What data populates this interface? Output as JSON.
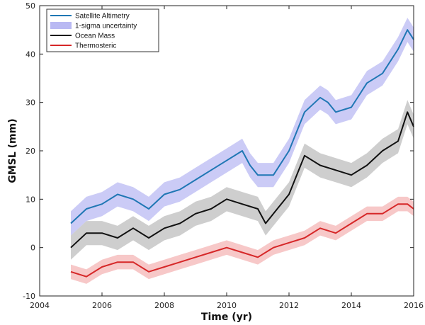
{
  "chart_data": {
    "type": "line",
    "title": "",
    "xlabel": "Time (yr)",
    "ylabel": "GMSL (mm)",
    "xlim": [
      2004,
      2016
    ],
    "ylim": [
      -10,
      50
    ],
    "xticks": [
      2004,
      2006,
      2008,
      2010,
      2012,
      2014,
      2016
    ],
    "yticks": [
      -10,
      0,
      10,
      20,
      30,
      40,
      50
    ],
    "legend_position": "top-left",
    "legend": [
      "Satellite Altimetry",
      "1-sigma uncertainty",
      "Ocean Mass",
      "Thermosteric"
    ],
    "series": [
      {
        "name": "Satellite Altimetry",
        "color": "#1f77b4",
        "band_color": "#b9b9f3",
        "uncertainty": 2.5,
        "x": [
          2005.0,
          2005.5,
          2006.0,
          2006.5,
          2007.0,
          2007.5,
          2008.0,
          2008.5,
          2009.0,
          2009.5,
          2010.0,
          2010.5,
          2010.75,
          2011.0,
          2011.5,
          2012.0,
          2012.5,
          2013.0,
          2013.25,
          2013.5,
          2014.0,
          2014.5,
          2015.0,
          2015.5,
          2015.8,
          2016.0
        ],
        "values": [
          5,
          8,
          9,
          11,
          10,
          8,
          11,
          12,
          14,
          16,
          18,
          20,
          17,
          15,
          15,
          20,
          28,
          31,
          30,
          28,
          29,
          34,
          36,
          41,
          45,
          43
        ]
      },
      {
        "name": "Ocean Mass",
        "color": "#111111",
        "band_color": "#bdbdbd",
        "uncertainty": 2.5,
        "x": [
          2005.0,
          2005.5,
          2006.0,
          2006.5,
          2007.0,
          2007.5,
          2008.0,
          2008.5,
          2009.0,
          2009.5,
          2010.0,
          2010.5,
          2011.0,
          2011.25,
          2011.5,
          2012.0,
          2012.5,
          2013.0,
          2013.5,
          2014.0,
          2014.5,
          2015.0,
          2015.5,
          2015.8,
          2016.0
        ],
        "values": [
          0,
          3,
          3,
          2,
          4,
          2,
          4,
          5,
          7,
          8,
          10,
          9,
          8,
          5,
          7,
          11,
          19,
          17,
          16,
          15,
          17,
          20,
          22,
          28,
          25
        ]
      },
      {
        "name": "Thermosteric",
        "color": "#d62728",
        "band_color": "#f4b6b6",
        "uncertainty": 1.5,
        "x": [
          2005.0,
          2005.5,
          2006.0,
          2006.5,
          2007.0,
          2007.5,
          2008.0,
          2008.5,
          2009.0,
          2009.5,
          2010.0,
          2010.5,
          2011.0,
          2011.5,
          2012.0,
          2012.5,
          2013.0,
          2013.5,
          2014.0,
          2014.5,
          2015.0,
          2015.5,
          2015.8,
          2016.0
        ],
        "values": [
          -5,
          -6,
          -4,
          -3,
          -3,
          -5,
          -4,
          -3,
          -2,
          -1,
          0,
          -1,
          -2,
          0,
          1,
          2,
          4,
          3,
          5,
          7,
          7,
          9,
          9,
          8
        ]
      }
    ]
  }
}
